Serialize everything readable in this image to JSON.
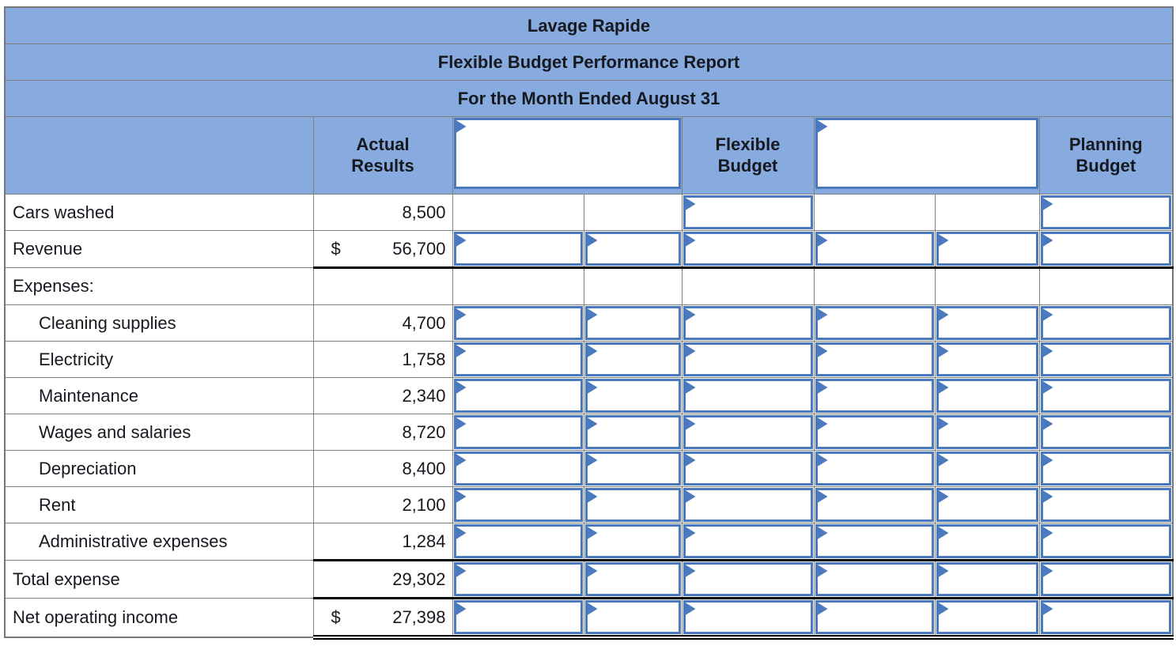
{
  "report": {
    "titles": [
      "Lavage Rapide",
      "Flexible Budget Performance Report",
      "For the Month Ended August 31"
    ],
    "columns": {
      "actual": "Actual Results",
      "flexible": "Flexible Budget",
      "planning": "Planning Budget"
    },
    "rows": [
      {
        "label": "Cars washed",
        "indent": false,
        "dollar": "",
        "actual": "8,500",
        "inputs": [
          false,
          false,
          true,
          false,
          false,
          true
        ],
        "underline": ""
      },
      {
        "label": "Revenue",
        "indent": false,
        "dollar": "$",
        "actual": "56,700",
        "inputs": [
          true,
          true,
          true,
          true,
          true,
          true
        ],
        "underline": "single"
      },
      {
        "label": "Expenses:",
        "indent": false,
        "dollar": "",
        "actual": "",
        "inputs": [
          false,
          false,
          false,
          false,
          false,
          false
        ],
        "underline": ""
      },
      {
        "label": "Cleaning supplies",
        "indent": true,
        "dollar": "",
        "actual": "4,700",
        "inputs": [
          true,
          true,
          true,
          true,
          true,
          true
        ],
        "underline": ""
      },
      {
        "label": "Electricity",
        "indent": true,
        "dollar": "",
        "actual": "1,758",
        "inputs": [
          true,
          true,
          true,
          true,
          true,
          true
        ],
        "underline": ""
      },
      {
        "label": "Maintenance",
        "indent": true,
        "dollar": "",
        "actual": "2,340",
        "inputs": [
          true,
          true,
          true,
          true,
          true,
          true
        ],
        "underline": ""
      },
      {
        "label": "Wages and salaries",
        "indent": true,
        "dollar": "",
        "actual": "8,720",
        "inputs": [
          true,
          true,
          true,
          true,
          true,
          true
        ],
        "underline": ""
      },
      {
        "label": "Depreciation",
        "indent": true,
        "dollar": "",
        "actual": "8,400",
        "inputs": [
          true,
          true,
          true,
          true,
          true,
          true
        ],
        "underline": ""
      },
      {
        "label": "Rent",
        "indent": true,
        "dollar": "",
        "actual": "2,100",
        "inputs": [
          true,
          true,
          true,
          true,
          true,
          true
        ],
        "underline": ""
      },
      {
        "label": "Administrative expenses",
        "indent": true,
        "dollar": "",
        "actual": "1,284",
        "inputs": [
          true,
          true,
          true,
          true,
          true,
          true
        ],
        "underline": "single"
      },
      {
        "label": "Total expense",
        "indent": false,
        "dollar": "",
        "actual": "29,302",
        "inputs": [
          true,
          true,
          true,
          true,
          true,
          true
        ],
        "underline": "single"
      },
      {
        "label": "Net operating income",
        "indent": false,
        "dollar": "$",
        "actual": "27,398",
        "inputs": [
          true,
          true,
          true,
          true,
          true,
          true
        ],
        "underline": "double"
      }
    ],
    "colors": {
      "header_bg": "#87ABDF",
      "input_border": "#4B79BD",
      "grid_border": "#808080",
      "underline": "#000000"
    },
    "icons": {
      "answer_flag": "right-pointing-triangle"
    }
  }
}
